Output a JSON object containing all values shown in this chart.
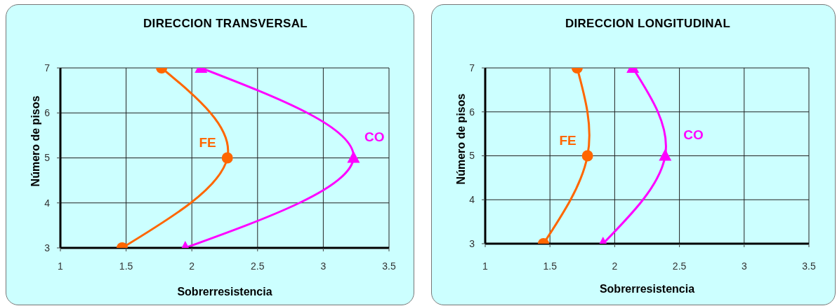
{
  "chart_data": [
    {
      "type": "line",
      "title": "DIRECCION TRANSVERSAL",
      "xlabel": "Sobrerresistencia",
      "ylabel": "Número de pisos",
      "xlim": [
        1,
        3.5
      ],
      "xticks": [
        1,
        1.5,
        2,
        2.5,
        3,
        3.5
      ],
      "ylim": [
        3,
        7
      ],
      "yticks": [
        3,
        4,
        5,
        6,
        7
      ],
      "grid": true,
      "series": [
        {
          "name": "FE",
          "color": "#ff6600",
          "marker": "circle",
          "x": [
            1.77,
            2.27,
            1.47
          ],
          "values": [
            7,
            5,
            3
          ]
        },
        {
          "name": "CO",
          "color": "#ff00ff",
          "marker": "triangle",
          "x": [
            2.07,
            3.23,
            1.95
          ],
          "values": [
            7,
            5,
            3
          ]
        }
      ]
    },
    {
      "type": "line",
      "title": "DIRECCION LONGITUDINAL",
      "xlabel": "Sobrerresistencia",
      "ylabel": "Número de pisos",
      "xlim": [
        1,
        3.5
      ],
      "xticks": [
        1,
        1.5,
        2,
        2.5,
        3,
        3.5
      ],
      "ylim": [
        3,
        7
      ],
      "yticks": [
        3,
        4,
        5,
        6,
        7
      ],
      "grid": true,
      "series": [
        {
          "name": "FE",
          "color": "#ff6600",
          "marker": "circle",
          "x": [
            1.71,
            1.79,
            1.45
          ],
          "values": [
            7,
            5,
            3
          ]
        },
        {
          "name": "CO",
          "color": "#ff00ff",
          "marker": "triangle",
          "x": [
            2.14,
            2.39,
            1.91
          ],
          "values": [
            7,
            5,
            3
          ]
        }
      ]
    }
  ]
}
